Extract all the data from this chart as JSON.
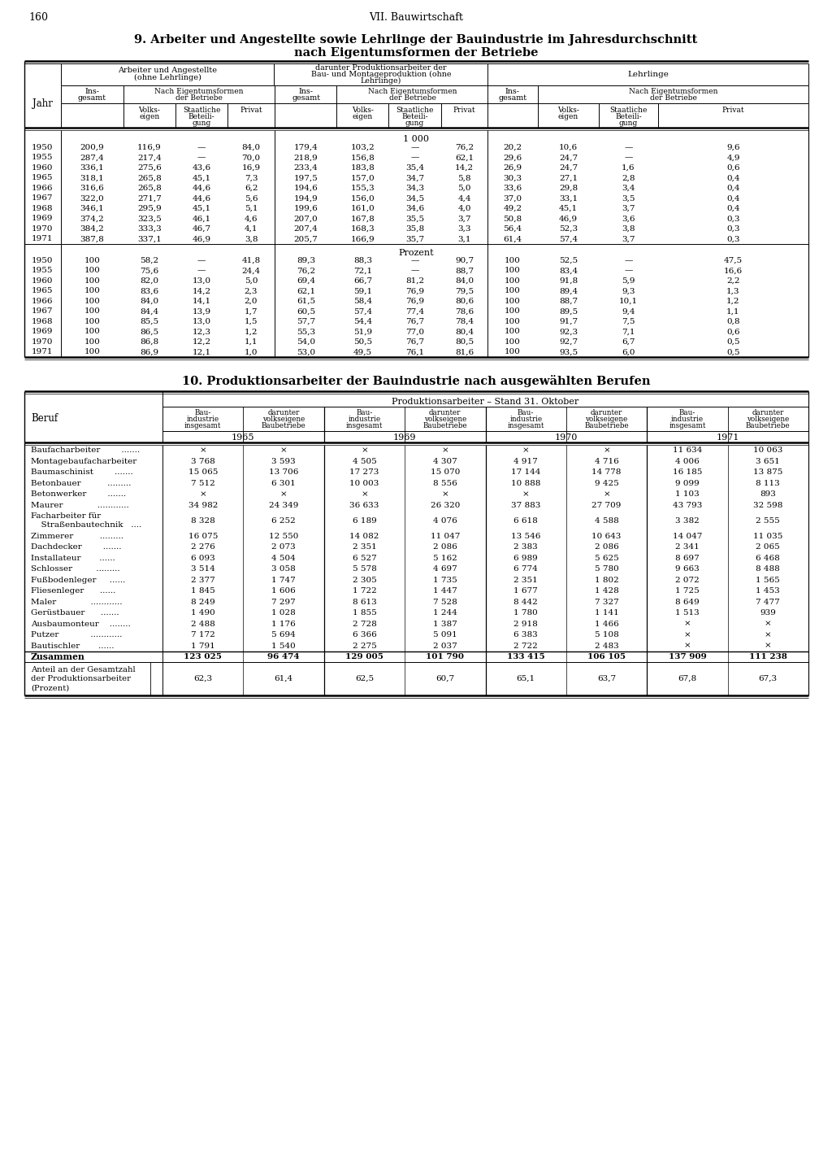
{
  "page_number": "160",
  "chapter": "VII. Bauwirtschaft",
  "table9_title_line1": "9. Arbeiter und Angestellte sowie Lehrlinge der Bauindustrie im Jahresdurchschnitt",
  "table9_title_line2": "nach Eigentumsformen der Betriebe",
  "table9_unit_label": "1 000",
  "table9_1000_data": [
    [
      "1950",
      "200,9",
      "116,9",
      "—",
      "84,0",
      "179,4",
      "103,2",
      "—",
      "76,2",
      "20,2",
      "10,6",
      "—",
      "9,6"
    ],
    [
      "1955",
      "287,4",
      "217,4",
      "—",
      "70,0",
      "218,9",
      "156,8",
      "—",
      "62,1",
      "29,6",
      "24,7",
      "—",
      "4,9"
    ],
    [
      "1960",
      "336,1",
      "275,6",
      "43,6",
      "16,9",
      "233,4",
      "183,8",
      "35,4",
      "14,2",
      "26,9",
      "24,7",
      "1,6",
      "0,6"
    ],
    [
      "1965",
      "318,1",
      "265,8",
      "45,1",
      "7,3",
      "197,5",
      "157,0",
      "34,7",
      "5,8",
      "30,3",
      "27,1",
      "2,8",
      "0,4"
    ],
    [
      "1966",
      "316,6",
      "265,8",
      "44,6",
      "6,2",
      "194,6",
      "155,3",
      "34,3",
      "5,0",
      "33,6",
      "29,8",
      "3,4",
      "0,4"
    ],
    [
      "1967",
      "322,0",
      "271,7",
      "44,6",
      "5,6",
      "194,9",
      "156,0",
      "34,5",
      "4,4",
      "37,0",
      "33,1",
      "3,5",
      "0,4"
    ],
    [
      "1968",
      "346,1",
      "295,9",
      "45,1",
      "5,1",
      "199,6",
      "161,0",
      "34,6",
      "4,0",
      "49,2",
      "45,1",
      "3,7",
      "0,4"
    ],
    [
      "1969",
      "374,2",
      "323,5",
      "46,1",
      "4,6",
      "207,0",
      "167,8",
      "35,5",
      "3,7",
      "50,8",
      "46,9",
      "3,6",
      "0,3"
    ],
    [
      "1970",
      "384,2",
      "333,3",
      "46,7",
      "4,1",
      "207,4",
      "168,3",
      "35,8",
      "3,3",
      "56,4",
      "52,3",
      "3,8",
      "0,3"
    ],
    [
      "1971",
      "387,8",
      "337,1",
      "46,9",
      "3,8",
      "205,7",
      "166,9",
      "35,7",
      "3,1",
      "61,4",
      "57,4",
      "3,7",
      "0,3"
    ]
  ],
  "table9_prozent_label": "Prozent",
  "table9_prozent_data": [
    [
      "1950",
      "100",
      "58,2",
      "—",
      "41,8",
      "89,3",
      "88,3",
      "—",
      "90,7",
      "100",
      "52,5",
      "—",
      "47,5"
    ],
    [
      "1955",
      "100",
      "75,6",
      "—",
      "24,4",
      "76,2",
      "72,1",
      "—",
      "88,7",
      "100",
      "83,4",
      "—",
      "16,6"
    ],
    [
      "1960",
      "100",
      "82,0",
      "13,0",
      "5,0",
      "69,4",
      "66,7",
      "81,2",
      "84,0",
      "100",
      "91,8",
      "5,9",
      "2,2"
    ],
    [
      "1965",
      "100",
      "83,6",
      "14,2",
      "2,3",
      "62,1",
      "59,1",
      "76,9",
      "79,5",
      "100",
      "89,4",
      "9,3",
      "1,3"
    ],
    [
      "1966",
      "100",
      "84,0",
      "14,1",
      "2,0",
      "61,5",
      "58,4",
      "76,9",
      "80,6",
      "100",
      "88,7",
      "10,1",
      "1,2"
    ],
    [
      "1967",
      "100",
      "84,4",
      "13,9",
      "1,7",
      "60,5",
      "57,4",
      "77,4",
      "78,6",
      "100",
      "89,5",
      "9,4",
      "1,1"
    ],
    [
      "1968",
      "100",
      "85,5",
      "13,0",
      "1,5",
      "57,7",
      "54,4",
      "76,7",
      "78,4",
      "100",
      "91,7",
      "7,5",
      "0,8"
    ],
    [
      "1969",
      "100",
      "86,5",
      "12,3",
      "1,2",
      "55,3",
      "51,9",
      "77,0",
      "80,4",
      "100",
      "92,3",
      "7,1",
      "0,6"
    ],
    [
      "1970",
      "100",
      "86,8",
      "12,2",
      "1,1",
      "54,0",
      "50,5",
      "76,7",
      "80,5",
      "100",
      "92,7",
      "6,7",
      "0,5"
    ],
    [
      "1971",
      "100",
      "86,9",
      "12,1",
      "1,0",
      "53,0",
      "49,5",
      "76,1",
      "81,6",
      "100",
      "93,5",
      "6,0",
      "0,5"
    ]
  ],
  "table10_title": "10. Produktionsarbeiter der Bauindustrie nach ausgewählten Berufen",
  "table10_header1": "Produktionsarbeiter – Stand 31. Oktober",
  "table10_col_headers": [
    [
      "Bau-",
      "industrie",
      "insgesamt"
    ],
    [
      "darunter",
      "volkseigene",
      "Baubetriebe"
    ],
    [
      "Bau-",
      "industrie",
      "insgesamt"
    ],
    [
      "darunter",
      "volkseigene",
      "Baubetriebe"
    ],
    [
      "Bau-",
      "industrie",
      "insgesamt"
    ],
    [
      "darunter",
      "volkseigene",
      "Baubetriebe"
    ],
    [
      "Bau-",
      "industrie",
      "insgesamt"
    ],
    [
      "darunter",
      "volkseigene",
      "Baubetriebe"
    ]
  ],
  "table10_years": [
    "1965",
    "1969",
    "1970",
    "1971"
  ],
  "table10_berufe": [
    [
      "Baufacharbeiter        ......."
    ],
    [
      "Montagebaufacharbeiter"
    ],
    [
      "Baumaschinist        ......."
    ],
    [
      "Betonbauer          ........."
    ],
    [
      "Betonwerker        ......."
    ],
    [
      "Maurer             ............"
    ],
    [
      "Facharbeiter für",
      "  Straßenbautechnik   ...."
    ],
    [
      "Zimmerer          ........."
    ],
    [
      "Dachdecker        ......."
    ],
    [
      "Installateur       ......"
    ],
    [
      "Schlosser         ........."
    ],
    [
      "Fußbodenleger     ......"
    ],
    [
      "Fliesenleger      ......"
    ],
    [
      "Maler             ............"
    ],
    [
      "Gerüstbauer      ......."
    ],
    [
      "Ausbaumonteur    ........"
    ],
    [
      "Putzer            ............"
    ],
    [
      "Bautischler       ......"
    ]
  ],
  "table10_data": [
    [
      "×",
      "×",
      "×",
      "×",
      "×",
      "×",
      "11 634",
      "10 063"
    ],
    [
      "3 768",
      "3 593",
      "4 505",
      "4 307",
      "4 917",
      "4 716",
      "4 006",
      "3 651"
    ],
    [
      "15 065",
      "13 706",
      "17 273",
      "15 070",
      "17 144",
      "14 778",
      "16 185",
      "13 875"
    ],
    [
      "7 512",
      "6 301",
      "10 003",
      "8 556",
      "10 888",
      "9 425",
      "9 099",
      "8 113"
    ],
    [
      "×",
      "×",
      "×",
      "×",
      "×",
      "×",
      "1 103",
      "893"
    ],
    [
      "34 982",
      "24 349",
      "36 633",
      "26 320",
      "37 883",
      "27 709",
      "43 793",
      "32 598"
    ],
    [
      "8 328",
      "6 252",
      "6 189",
      "4 076",
      "6 618",
      "4 588",
      "3 382",
      "2 555"
    ],
    [
      "16 075",
      "12 550",
      "14 082",
      "11 047",
      "13 546",
      "10 643",
      "14 047",
      "11 035"
    ],
    [
      "2 276",
      "2 073",
      "2 351",
      "2 086",
      "2 383",
      "2 086",
      "2 341",
      "2 065"
    ],
    [
      "6 093",
      "4 504",
      "6 527",
      "5 162",
      "6 989",
      "5 625",
      "8 697",
      "6 468"
    ],
    [
      "3 514",
      "3 058",
      "5 578",
      "4 697",
      "6 774",
      "5 780",
      "9 663",
      "8 488"
    ],
    [
      "2 377",
      "1 747",
      "2 305",
      "1 735",
      "2 351",
      "1 802",
      "2 072",
      "1 565"
    ],
    [
      "1 845",
      "1 606",
      "1 722",
      "1 447",
      "1 677",
      "1 428",
      "1 725",
      "1 453"
    ],
    [
      "8 249",
      "7 297",
      "8 613",
      "7 528",
      "8 442",
      "7 327",
      "8 649",
      "7 477"
    ],
    [
      "1 490",
      "1 028",
      "1 855",
      "1 244",
      "1 780",
      "1 141",
      "1 513",
      "939"
    ],
    [
      "2 488",
      "1 176",
      "2 728",
      "1 387",
      "2 918",
      "1 466",
      "×",
      "×"
    ],
    [
      "7 172",
      "5 694",
      "6 366",
      "5 091",
      "6 383",
      "5 108",
      "×",
      "×"
    ],
    [
      "1 791",
      "1 540",
      "2 275",
      "2 037",
      "2 722",
      "2 483",
      "×",
      "×"
    ]
  ],
  "table10_zusammen": [
    "123 025",
    "96 474",
    "129 005",
    "101 790",
    "133 415",
    "106 105",
    "137 909",
    "111 238"
  ],
  "table10_anteil": [
    "62,3",
    "61,4",
    "62,5",
    "60,7",
    "65,1",
    "63,7",
    "67,8",
    "67,3"
  ],
  "table10_anteil_label": [
    "Anteil an der Gesamtzahl",
    "der Produktionsarbeiter",
    "(Prozent)"
  ]
}
